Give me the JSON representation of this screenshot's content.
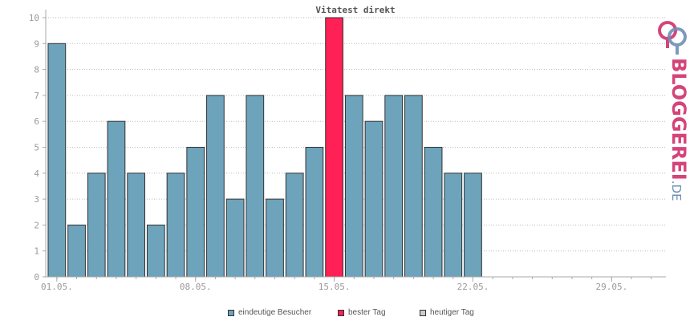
{
  "chart_data": {
    "type": "bar",
    "title": "Vitatest direkt",
    "ylim": [
      0,
      10
    ],
    "yticks": [
      "0",
      "1",
      "2",
      "3",
      "4",
      "5",
      "6",
      "7",
      "8",
      "9",
      "10"
    ],
    "xtick_labels": [
      "01.05.",
      "08.05.",
      "15.05.",
      "22.05.",
      "29.05."
    ],
    "xtick_days": [
      1,
      8,
      15,
      22,
      29
    ],
    "days": [
      1,
      2,
      3,
      4,
      5,
      6,
      7,
      8,
      9,
      10,
      11,
      12,
      13,
      14,
      15,
      16,
      17,
      18,
      19,
      20,
      21,
      22
    ],
    "values": [
      9,
      2,
      4,
      6,
      4,
      2,
      4,
      5,
      7,
      3,
      7,
      3,
      4,
      5,
      10,
      7,
      6,
      7,
      7,
      5,
      4,
      4
    ],
    "best_day": 15,
    "days_in_month": 31,
    "grid": true,
    "colors": {
      "visitors": "#6da3bb",
      "best": "#ff2055",
      "today": "#cccccc",
      "axis": "#aaaaaa",
      "grid": "#bbbbbb"
    }
  },
  "legend": {
    "visitors": "eindeutige Besucher",
    "best": "bester Tag",
    "today": "heutiger Tag"
  },
  "brand": {
    "main": "BLOGGEREI",
    "suffix": ".DE",
    "logo_icon": "bloggerei-logo-icon"
  }
}
